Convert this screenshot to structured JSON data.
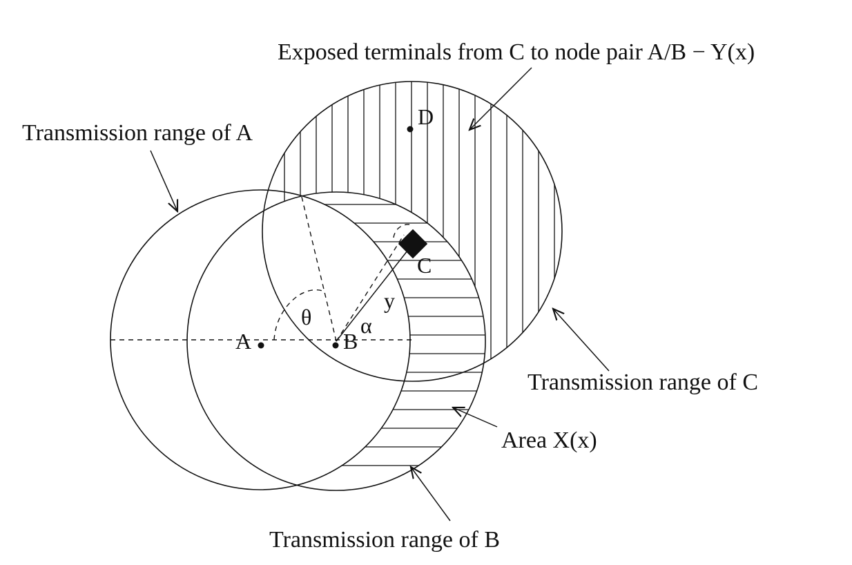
{
  "labels": {
    "exposed": "Exposed terminals from C to node pair A/B − Y(x)",
    "range_a": "Transmission range of A",
    "range_b": "Transmission range of B",
    "range_c": "Transmission range of C",
    "area_x": "Area X(x)"
  },
  "points": {
    "a": "A",
    "b": "B",
    "c": "C",
    "d": "D"
  },
  "symbols": {
    "theta": "θ",
    "alpha": "α",
    "y": "y"
  }
}
